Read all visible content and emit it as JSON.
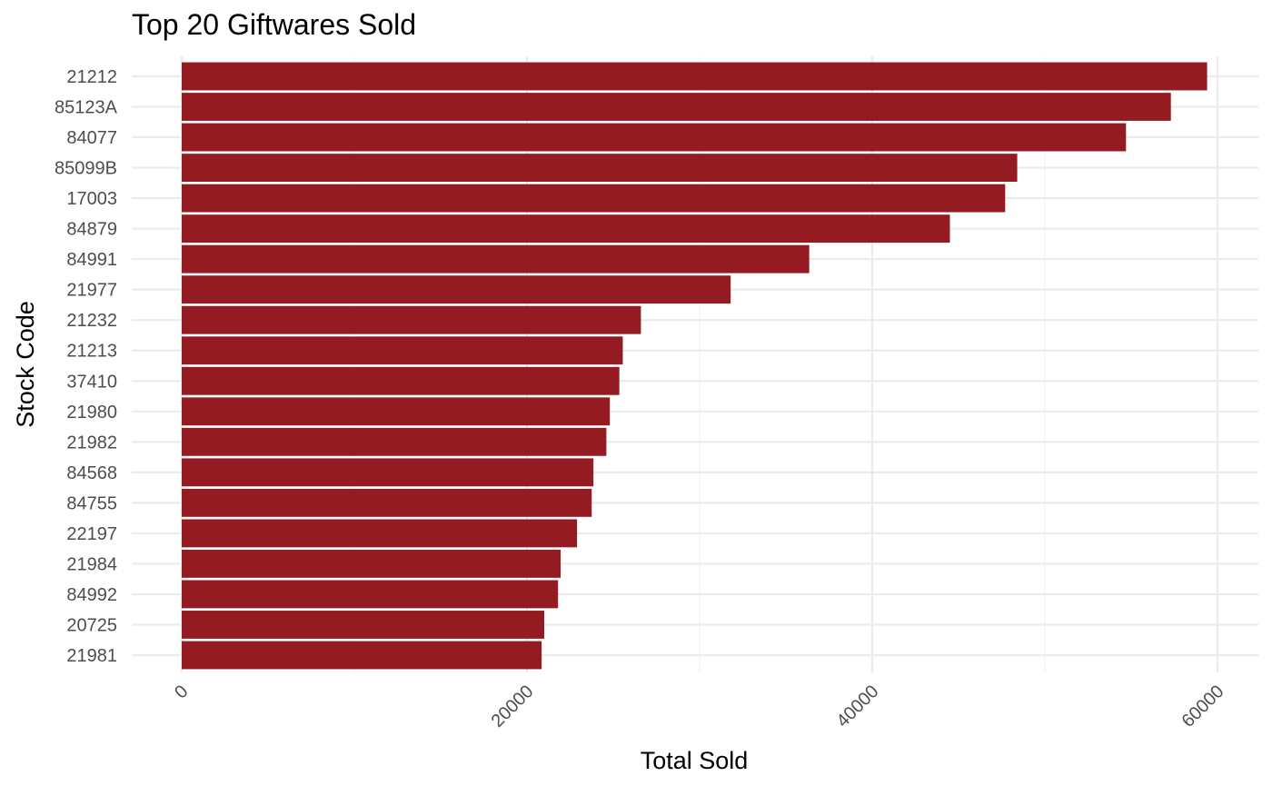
{
  "chart_data": {
    "type": "bar",
    "orientation": "horizontal",
    "title": "Top 20 Giftwares Sold",
    "xlabel": "Total Sold",
    "ylabel": "Stock Code",
    "xlim": [
      0,
      61000
    ],
    "x_ticks": [
      0,
      20000,
      40000,
      60000
    ],
    "x_tick_labels": [
      "0",
      "20000",
      "40000",
      "60000"
    ],
    "x_tick_label_rotation": -45,
    "grid": true,
    "bar_color": "#951b22",
    "categories": [
      "21212",
      "85123A",
      "84077",
      "85099B",
      "17003",
      "84879",
      "84991",
      "21977",
      "21232",
      "21213",
      "37410",
      "21980",
      "21982",
      "84568",
      "84755",
      "22197",
      "21984",
      "84992",
      "20725",
      "21981"
    ],
    "values": [
      59400,
      57300,
      54700,
      48400,
      47700,
      44500,
      36350,
      31800,
      26600,
      25550,
      25350,
      24800,
      24600,
      23850,
      23750,
      22900,
      21950,
      21800,
      21000,
      20850
    ]
  }
}
